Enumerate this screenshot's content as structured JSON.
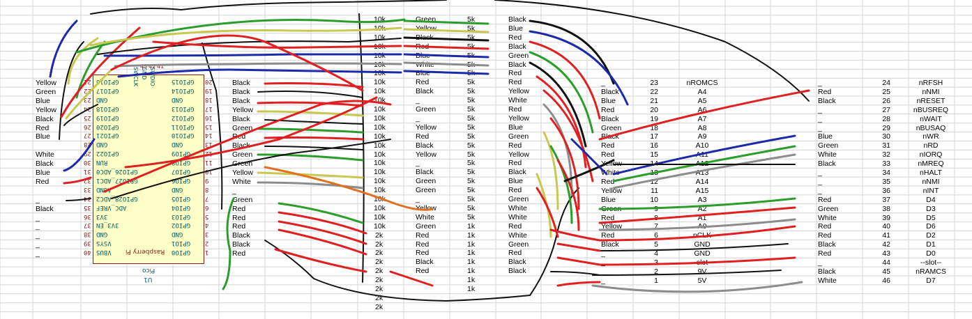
{
  "pico": {
    "top_labels": [
      "SWCLK",
      "GND",
      "SWDIO"
    ],
    "top_numbers": [
      "43",
      "42",
      "41"
    ],
    "left_pins": [
      "GPIO15",
      "GPIO14",
      "GND",
      "GPIO13",
      "GPIO12",
      "GPIO11",
      "GPIO10",
      "GND",
      "GPIO9",
      "GPIO8",
      "GPIO7",
      "GPIO6",
      "GND",
      "GPIO5",
      "GPIO4",
      "GPIO3",
      "GPIO2",
      "GND",
      "GPIO1",
      "GPIO0"
    ],
    "left_numbers": [
      "20",
      "19",
      "18",
      "17",
      "16",
      "15",
      "14",
      "13",
      "12",
      "11",
      "10",
      "9",
      "8",
      "7",
      "6",
      "5",
      "4",
      "3",
      "2",
      "1"
    ],
    "right_pins": [
      "GPIO16",
      "GPIO17",
      "GND",
      "GPIO18",
      "GPIO19",
      "GPIO20",
      "GPIO21",
      "GND",
      "GPIO22",
      "RUN",
      "GPIO26_ADC0",
      "GPIO27_ADC1",
      "AGND",
      "GPIO28_ADC2",
      "ADC_VREF",
      "3V3",
      "3V3_EN",
      "GND",
      "VSYS",
      "VBUS"
    ],
    "right_numbers": [
      "21",
      "22",
      "23",
      "24",
      "25",
      "26",
      "27",
      "28",
      "29",
      "30",
      "31",
      "32",
      "33",
      "34",
      "35",
      "36",
      "37",
      "38",
      "39",
      "40"
    ],
    "title": "Raspberry Pi",
    "model": "Pico",
    "ref": "U1"
  },
  "far_left_colors": [
    "Yellow",
    "Green",
    "Blue",
    "Yellow",
    "Black",
    "Red",
    "Blue",
    "",
    "White",
    "Black",
    "Blue",
    "Red",
    "_",
    "Black",
    "_",
    "_",
    "_",
    "_",
    "_"
  ],
  "col_b_colors": [
    "Black",
    "Black",
    "Black",
    "Yellow",
    "Black",
    "Green",
    "Red",
    "Black",
    "Green",
    "Green",
    "Yellow",
    "White",
    "_",
    "Green",
    "Red",
    "Red",
    "Red",
    "Black",
    "Black",
    "Red"
  ],
  "resistors_top": [
    "10k",
    "10k",
    "10k",
    "10k",
    "10k",
    "10k",
    "10k",
    "10k",
    "10k",
    "10k",
    "10k",
    "10k",
    "10k",
    "10k",
    "10k",
    "10k",
    "10k",
    "10k",
    "10k",
    "10k",
    "10k",
    "10k",
    "10k",
    "10k"
  ],
  "resistors_bottom": [
    "2k",
    "2k",
    "2k",
    "2k",
    "2k",
    "2k",
    "2k",
    "2k",
    "2k"
  ],
  "col_d_colors": [
    "Green",
    "Yellow",
    "Black",
    "Red",
    "Blue",
    "White",
    "Blue",
    "Red",
    "Black",
    "_",
    "Green",
    "_",
    "Yellow",
    "Red",
    "Black",
    "Yellow",
    "_",
    "Black",
    "Green",
    "Green",
    "_",
    "Yellow",
    "White",
    "Green",
    "Red",
    "Red",
    "Red",
    "Black",
    "Red"
  ],
  "col_e_values": [
    "5k",
    "5k",
    "5k",
    "5k",
    "5k",
    "5k",
    "5k",
    "5k",
    "5k",
    "5k",
    "5k",
    "5k",
    "5k",
    "5k",
    "5k",
    "5k",
    "5k",
    "5k",
    "5k",
    "5k",
    "5k",
    "5k",
    "5k",
    "1k",
    "1k",
    "1k",
    "1k",
    "1k",
    "1k",
    "1k",
    "1k"
  ],
  "col_f_colors": [
    "Black",
    "Blue",
    "Red",
    "Black",
    "Green",
    "Black",
    "Red",
    "Red",
    "Yellow",
    "White",
    "Red",
    "Yellow",
    "Blue",
    "Green",
    "Red",
    "Yellow",
    "Red",
    "Black",
    "Blue",
    "Red",
    "Green",
    "White",
    "White",
    "Red",
    "White",
    "Green",
    "Red",
    "Black",
    "Black"
  ],
  "slot_left": {
    "colors": [
      "_",
      "Black",
      "Blue",
      "Red",
      "Black",
      "Green",
      "Black",
      "Red",
      "Red",
      "Yellow",
      "White",
      "Red",
      "Yellow",
      "Blue",
      "Green",
      "Red",
      "Yellow",
      "Red",
      "Black",
      "_",
      "_",
      "_",
      "_"
    ],
    "numbers": [
      "23",
      "22",
      "21",
      "20",
      "19",
      "18",
      "17",
      "16",
      "15",
      "14",
      "13",
      "12",
      "11",
      "10",
      "9",
      "8",
      "7",
      "6",
      "5",
      "4",
      "3",
      "2",
      "1"
    ],
    "signals": [
      "nROMCS",
      "A4",
      "A5",
      "A6",
      "A7",
      "A8",
      "A9",
      "A10",
      "A11",
      "A12",
      "A13",
      "A14",
      "A15",
      "A3",
      "A2",
      "A1",
      "A0",
      "nCLK",
      "GND",
      "GND",
      "--slot--",
      "9V",
      "5V"
    ]
  },
  "slot_right": {
    "colors": [
      "_",
      "Red",
      "Black",
      "_",
      "_",
      "_",
      "Blue",
      "Green",
      "White",
      "Black",
      "_",
      "_",
      "_",
      "Red",
      "Green",
      "White",
      "Red",
      "Red",
      "Black",
      "Red",
      "_",
      "Black",
      "White"
    ],
    "numbers": [
      "24",
      "25",
      "26",
      "27",
      "28",
      "29",
      "30",
      "31",
      "32",
      "33",
      "34",
      "35",
      "36",
      "37",
      "38",
      "39",
      "40",
      "41",
      "42",
      "43",
      "44",
      "45",
      "46"
    ],
    "signals": [
      "nRFSH",
      "nNMI",
      "nRESET",
      "nBUSREQ",
      "nWAIT",
      "nBUSAQ",
      "nWR",
      "nRD",
      "nIORQ",
      "nMREQ",
      "nHALT",
      "nNMI",
      "nINT",
      "D4",
      "D3",
      "D5",
      "D6",
      "D2",
      "D1",
      "D0",
      "--slot--",
      "nRAMCS",
      "D7"
    ]
  },
  "wire_colors": {
    "black": "#111111",
    "red": "#e02020",
    "green": "#2a9d2a",
    "blue": "#1c2aa8",
    "yellow": "#c8c850",
    "gray": "#8c8c8c",
    "orange": "#e07020"
  }
}
